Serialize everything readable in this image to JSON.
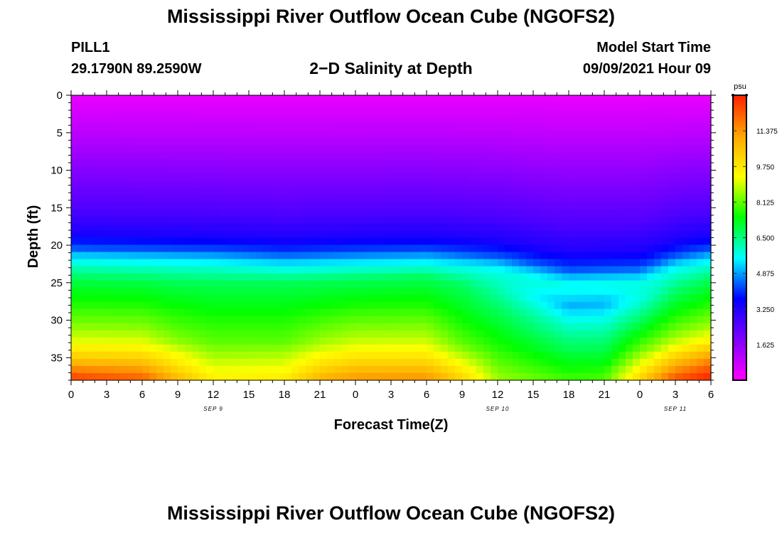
{
  "header": {
    "title": "Mississippi River Outflow Ocean Cube (NGOFS2)",
    "footer_title": "Mississippi River Outflow Ocean Cube (NGOFS2)",
    "station": "PILL1",
    "coordinates": "29.1790N  89.2590W",
    "subtitle": "2−D Salinity at Depth",
    "model_start_label": "Model Start Time",
    "model_start_value": "09/09/2021 Hour 09"
  },
  "chart_data": {
    "type": "heatmap",
    "title": "2−D Salinity at Depth",
    "xlabel": "Forecast Time(Z)",
    "ylabel": "Depth (ft)",
    "x_tick_labels": [
      "0",
      "3",
      "6",
      "9",
      "12",
      "15",
      "18",
      "21",
      "0",
      "3",
      "6",
      "9",
      "12",
      "15",
      "18",
      "21",
      "0",
      "3",
      "6"
    ],
    "date_labels": [
      {
        "text": "SEP 9",
        "hour_index": 12
      },
      {
        "text": "SEP 10",
        "hour_index": 36
      },
      {
        "text": "SEP 11",
        "hour_index": 51
      }
    ],
    "x_range_hours": [
      0,
      54
    ],
    "y_ticks": [
      0,
      5,
      10,
      15,
      20,
      25,
      30,
      35
    ],
    "ylim": [
      0,
      38
    ],
    "y_inverted": true,
    "colorbar": {
      "unit": "psu",
      "tick_labels": [
        "1.625",
        "3.250",
        "4.875",
        "6.500",
        "8.125",
        "9.750",
        "11.375"
      ],
      "range": [
        0,
        13
      ],
      "colors": [
        "#ff00ff",
        "#8000ff",
        "#0000ff",
        "#00ffff",
        "#00ff00",
        "#ffff00",
        "#ffa500",
        "#ff2000"
      ]
    },
    "profile_hours": [
      0,
      6,
      9,
      12,
      18,
      21,
      24,
      30,
      33,
      36,
      42,
      45,
      48,
      51,
      54
    ],
    "upper_depth_ft": [
      0,
      5,
      10,
      15,
      18,
      20,
      21,
      22
    ],
    "upper_salinity_psu": [
      0.3,
      1.0,
      1.8,
      2.6,
      3.3,
      4.3,
      5.2,
      5.8
    ],
    "lower_depth_ft": [
      25,
      28,
      31,
      33,
      34,
      35,
      36,
      37,
      38
    ],
    "lower_salinity_psu": [
      [
        6.9,
        7.6,
        8.4,
        9.1,
        9.7,
        10.3,
        11.0,
        12.0,
        12.6
      ],
      [
        6.9,
        7.6,
        8.4,
        9.1,
        9.6,
        10.2,
        10.8,
        11.6,
        12.2
      ],
      [
        6.8,
        7.4,
        8.0,
        8.5,
        9.0,
        9.4,
        9.8,
        10.3,
        10.8
      ],
      [
        6.8,
        7.3,
        7.8,
        8.1,
        8.4,
        8.7,
        9.0,
        9.3,
        9.6
      ],
      [
        6.8,
        7.3,
        7.8,
        8.1,
        8.5,
        8.8,
        9.1,
        9.4,
        9.7
      ],
      [
        6.8,
        7.4,
        8.1,
        8.6,
        9.0,
        9.5,
        9.9,
        10.4,
        10.9
      ],
      [
        6.8,
        7.5,
        8.3,
        8.9,
        9.3,
        9.8,
        10.3,
        10.9,
        11.4
      ],
      [
        6.8,
        7.5,
        8.3,
        8.9,
        9.3,
        9.8,
        10.3,
        10.9,
        11.5
      ],
      [
        6.7,
        7.2,
        7.7,
        8.1,
        8.5,
        8.9,
        9.4,
        9.8,
        10.2
      ],
      [
        6.2,
        6.8,
        7.3,
        7.6,
        7.8,
        8.0,
        8.2,
        8.4,
        8.6
      ],
      [
        5.0,
        5.8,
        6.5,
        6.9,
        7.1,
        7.3,
        7.5,
        7.7,
        7.9
      ],
      [
        5.0,
        5.8,
        6.5,
        6.9,
        7.1,
        7.3,
        7.6,
        7.8,
        8.0
      ],
      [
        5.8,
        6.7,
        7.6,
        8.2,
        8.6,
        9.0,
        9.4,
        9.8,
        10.2
      ],
      [
        6.5,
        7.3,
        8.2,
        9.0,
        9.7,
        10.4,
        11.0,
        11.8,
        12.4
      ],
      [
        6.8,
        7.6,
        8.6,
        9.6,
        10.4,
        11.2,
        11.9,
        12.6,
        13.0
      ]
    ],
    "transition_top_hours": [
      0,
      12,
      18,
      24,
      30,
      36,
      42,
      48,
      51,
      54
    ],
    "transition_top_depth_ft": [
      22.4,
      22.8,
      23.3,
      23.0,
      22.8,
      23.6,
      25.6,
      25.3,
      23.5,
      22.6
    ],
    "transition_bottom_depth_ft": [
      24.6,
      25.0,
      25.0,
      24.6,
      24.3,
      26.0,
      28.0,
      27.5,
      25.5,
      24.6
    ]
  }
}
